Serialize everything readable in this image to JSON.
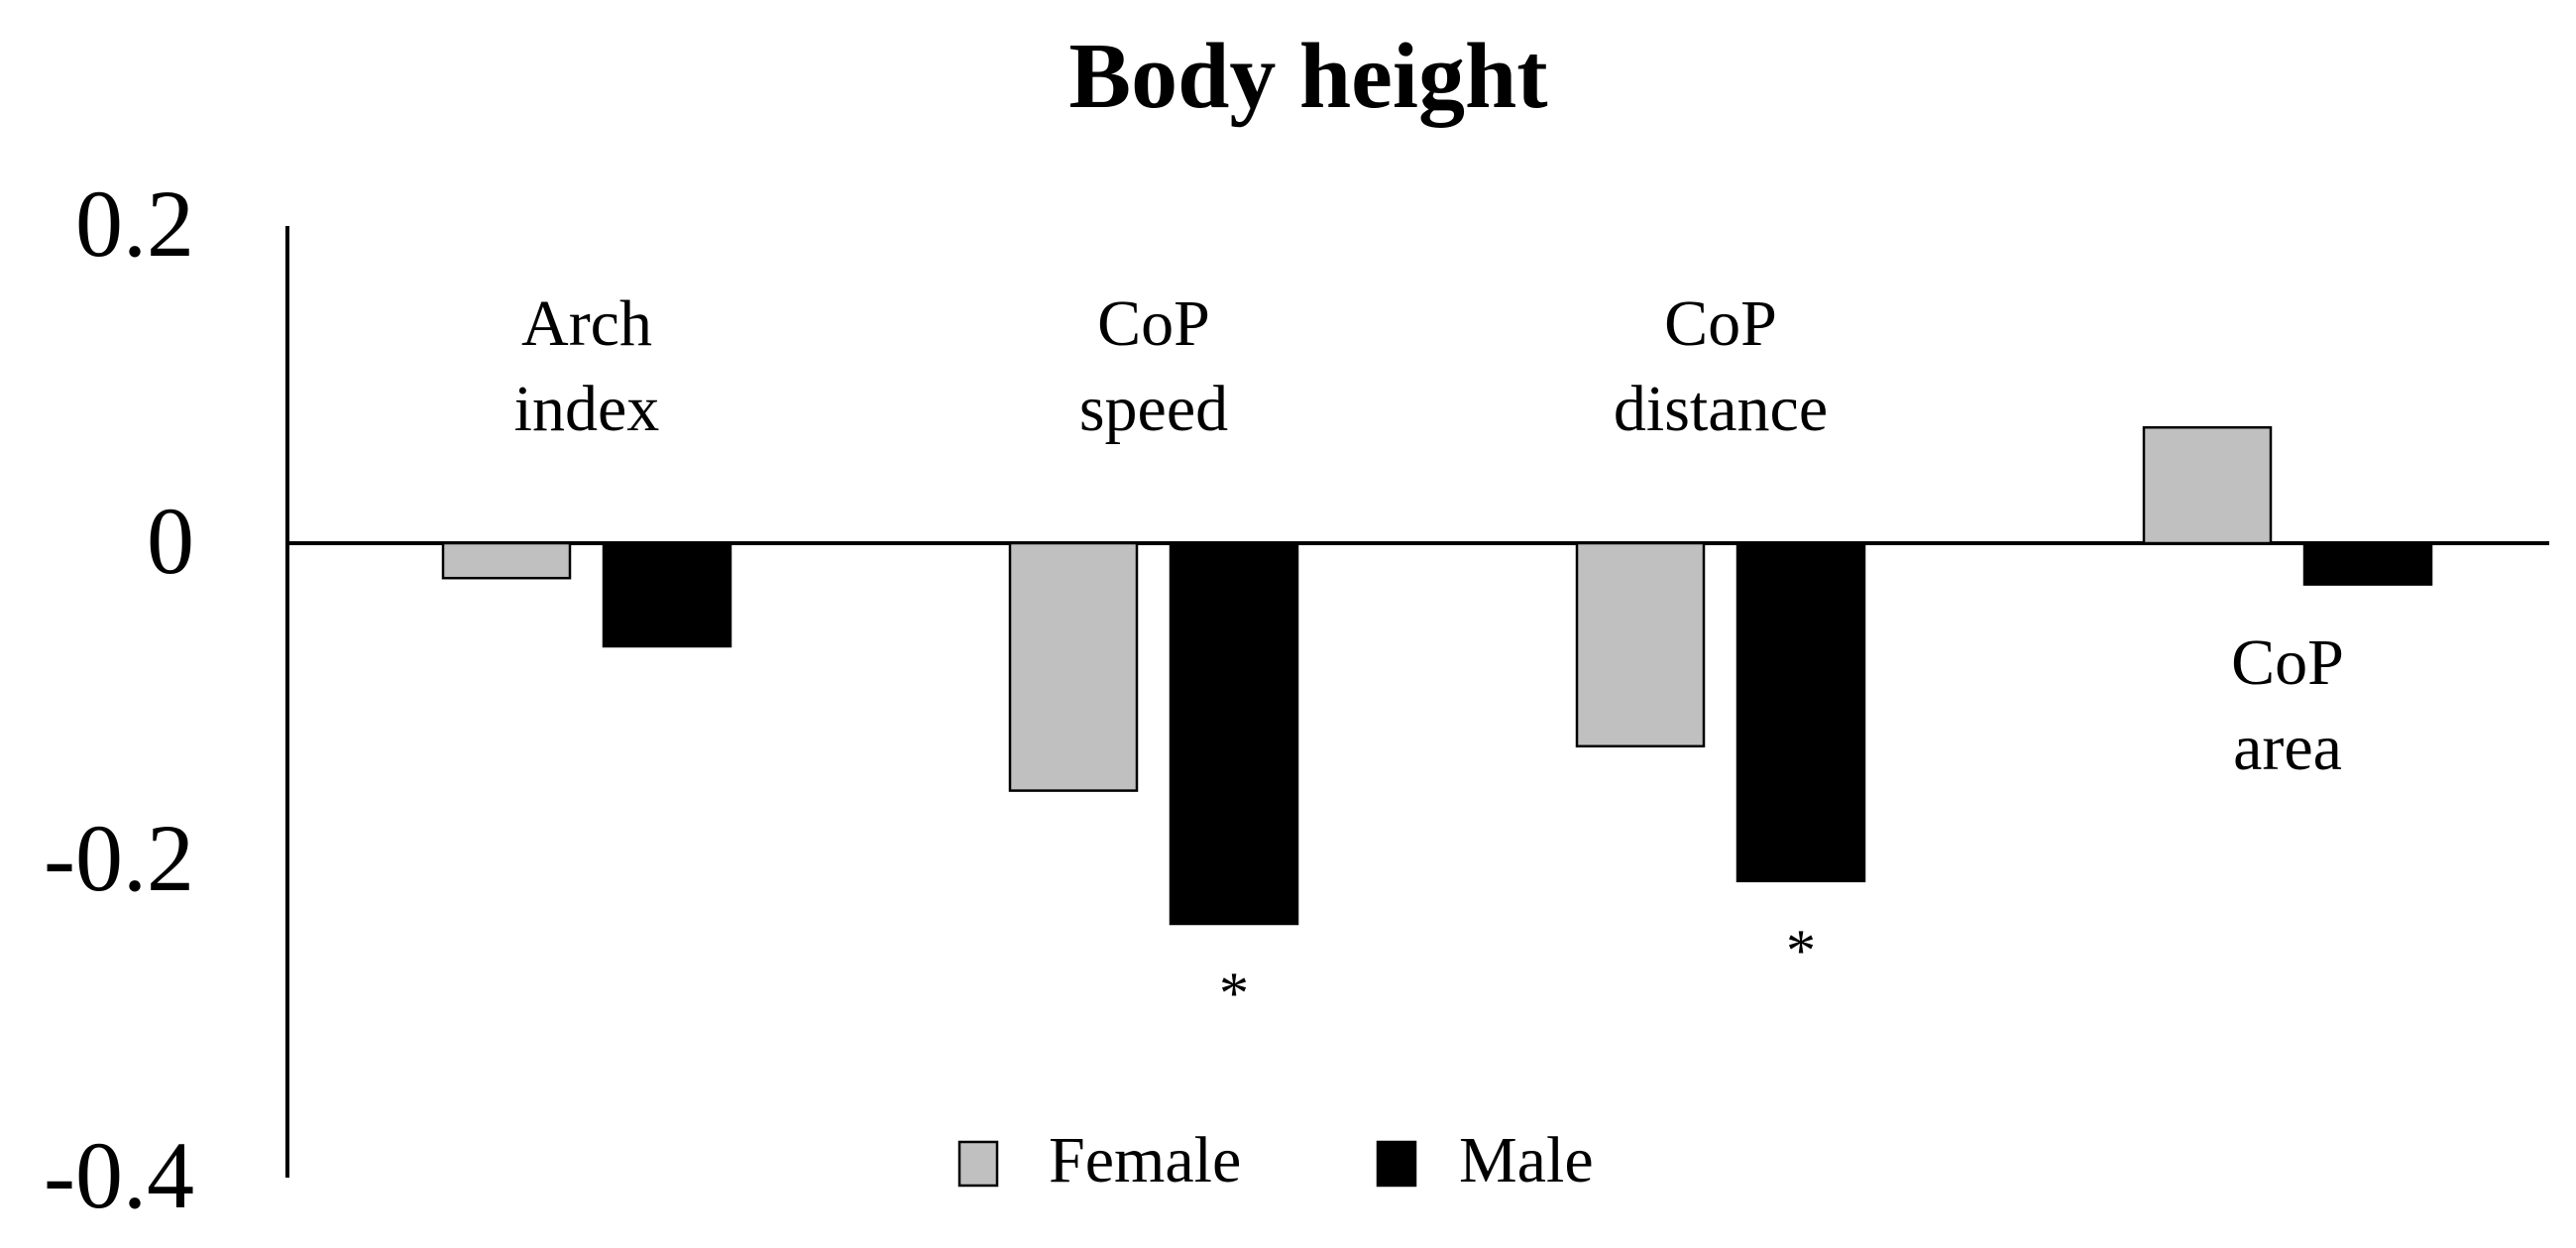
{
  "chart_data": {
    "type": "bar",
    "title": "Body height",
    "xlabel": "",
    "ylabel": "",
    "ylim": [
      -0.4,
      0.2
    ],
    "yticks": [
      "0.2",
      "0",
      "-0.2",
      "-0.4"
    ],
    "ytick_values": [
      0.2,
      0,
      -0.2,
      -0.4
    ],
    "categories": [
      {
        "lines": [
          "Arch",
          "index"
        ],
        "label_side": "above"
      },
      {
        "lines": [
          "CoP",
          "speed"
        ],
        "label_side": "above"
      },
      {
        "lines": [
          "CoP",
          "distance"
        ],
        "label_side": "above"
      },
      {
        "lines": [
          "CoP",
          "area"
        ],
        "label_side": "below"
      }
    ],
    "series": [
      {
        "name": "Female",
        "color": "#c0c0c0",
        "values": [
          -0.022,
          -0.156,
          -0.128,
          0.073
        ]
      },
      {
        "name": "Male",
        "color": "#000000",
        "values": [
          -0.065,
          -0.24,
          -0.213,
          -0.026
        ]
      }
    ],
    "significance": [
      "",
      "*",
      "*",
      ""
    ],
    "grid": false,
    "legend": {
      "position": "bottom-center"
    }
  }
}
